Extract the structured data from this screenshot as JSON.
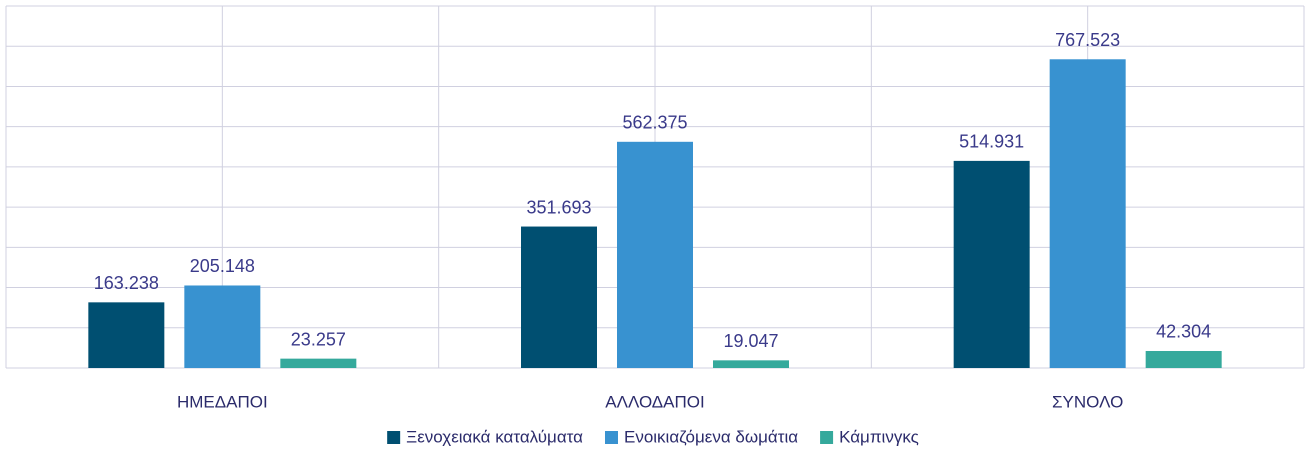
{
  "chart_data": {
    "type": "bar",
    "categories": [
      "ΗΜΕΔΑΠΟΙ",
      "ΑΛΛΟΔΑΠΟΙ",
      "ΣΥΝΟΛΟ"
    ],
    "series": [
      {
        "name": "Ξενοχειακά καταλύματα",
        "color": "#004f71",
        "values": [
          163238,
          351693,
          514931
        ],
        "value_labels": [
          "163.238",
          "351.693",
          "514.931"
        ]
      },
      {
        "name": "Ενοικιαζόμενα δωμάτια",
        "color": "#3892d0",
        "values": [
          205148,
          562375,
          767523
        ],
        "value_labels": [
          "205.148",
          "562.375",
          "767.523"
        ]
      },
      {
        "name": "Κάμπινγκς",
        "color": "#35a99c",
        "values": [
          23257,
          19047,
          42304
        ],
        "value_labels": [
          "23.257",
          "19.047",
          "42.304"
        ]
      }
    ],
    "ylim": [
      0,
      900000
    ],
    "yticks": [
      0,
      100000,
      200000,
      300000,
      400000,
      500000,
      600000,
      700000,
      800000,
      900000
    ],
    "grid": true,
    "legend": "bottom"
  }
}
